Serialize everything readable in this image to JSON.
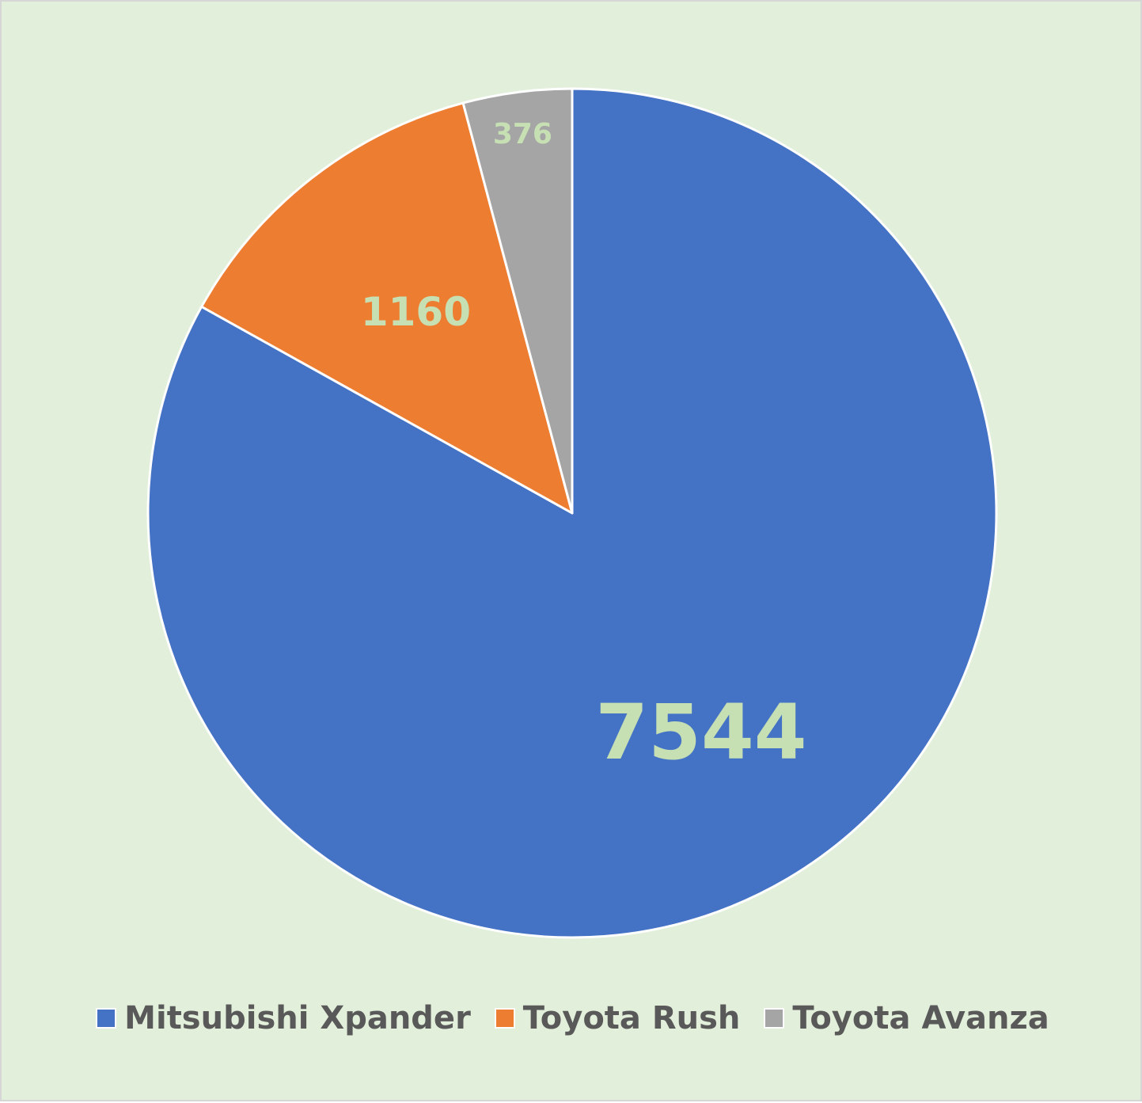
{
  "chart_data": {
    "type": "pie",
    "title": "",
    "start_angle": "12 o'clock",
    "direction": "clockwise",
    "legend_position": "bottom",
    "slices": [
      {
        "name": "Mitsubishi Xpander",
        "value": 7544,
        "label": "7544",
        "color": "#4472c4"
      },
      {
        "name": "Toyota Rush",
        "value": 1160,
        "label": "1160",
        "color": "#ed7d31"
      },
      {
        "name": "Toyota Avanza",
        "value": 376,
        "label": "376",
        "color": "#a5a5a5"
      }
    ],
    "data_label_color": "#c6e0b4",
    "background_color": "#e2efda"
  }
}
